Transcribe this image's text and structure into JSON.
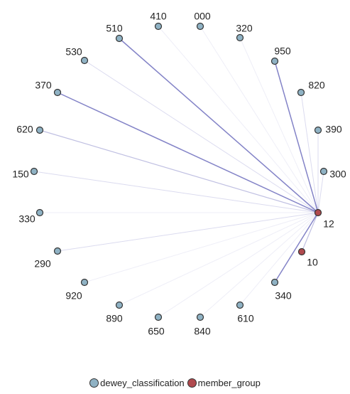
{
  "diagram": {
    "nodes": [
      {
        "id": "410",
        "label": "410",
        "group": "dewey_classification"
      },
      {
        "id": "000",
        "label": "000",
        "group": "dewey_classification"
      },
      {
        "id": "510",
        "label": "510",
        "group": "dewey_classification"
      },
      {
        "id": "320",
        "label": "320",
        "group": "dewey_classification"
      },
      {
        "id": "530",
        "label": "530",
        "group": "dewey_classification"
      },
      {
        "id": "950",
        "label": "950",
        "group": "dewey_classification"
      },
      {
        "id": "370",
        "label": "370",
        "group": "dewey_classification"
      },
      {
        "id": "820",
        "label": "820",
        "group": "dewey_classification"
      },
      {
        "id": "620",
        "label": "620",
        "group": "dewey_classification"
      },
      {
        "id": "390",
        "label": "390",
        "group": "dewey_classification"
      },
      {
        "id": "150",
        "label": "150",
        "group": "dewey_classification"
      },
      {
        "id": "300",
        "label": "300",
        "group": "dewey_classification"
      },
      {
        "id": "12",
        "label": "12",
        "group": "member_group"
      },
      {
        "id": "330",
        "label": "330",
        "group": "dewey_classification"
      },
      {
        "id": "10",
        "label": "10",
        "group": "member_group"
      },
      {
        "id": "290",
        "label": "290",
        "group": "dewey_classification"
      },
      {
        "id": "340",
        "label": "340",
        "group": "dewey_classification"
      },
      {
        "id": "920",
        "label": "920",
        "group": "dewey_classification"
      },
      {
        "id": "890",
        "label": "890",
        "group": "dewey_classification"
      },
      {
        "id": "610",
        "label": "610",
        "group": "dewey_classification"
      },
      {
        "id": "650",
        "label": "650",
        "group": "dewey_classification"
      },
      {
        "id": "840",
        "label": "840",
        "group": "dewey_classification"
      }
    ],
    "edges": [
      {
        "from": "12",
        "to": "410",
        "strength": "faint"
      },
      {
        "from": "12",
        "to": "000",
        "strength": "faint"
      },
      {
        "from": "12",
        "to": "510",
        "strength": "strong"
      },
      {
        "from": "12",
        "to": "320",
        "strength": "faint"
      },
      {
        "from": "12",
        "to": "530",
        "strength": "light"
      },
      {
        "from": "12",
        "to": "950",
        "strength": "strong"
      },
      {
        "from": "12",
        "to": "370",
        "strength": "strong"
      },
      {
        "from": "12",
        "to": "820",
        "strength": "light"
      },
      {
        "from": "12",
        "to": "620",
        "strength": "medium"
      },
      {
        "from": "12",
        "to": "390",
        "strength": "light"
      },
      {
        "from": "12",
        "to": "150",
        "strength": "light"
      },
      {
        "from": "12",
        "to": "300",
        "strength": "light"
      },
      {
        "from": "12",
        "to": "330",
        "strength": "faint"
      },
      {
        "from": "12",
        "to": "290",
        "strength": "light"
      },
      {
        "from": "12",
        "to": "920",
        "strength": "faint"
      },
      {
        "from": "12",
        "to": "890",
        "strength": "faint"
      },
      {
        "from": "12",
        "to": "650",
        "strength": "faint"
      },
      {
        "from": "12",
        "to": "840",
        "strength": "faint"
      },
      {
        "from": "12",
        "to": "610",
        "strength": "faint"
      },
      {
        "from": "12",
        "to": "340",
        "strength": "strong"
      },
      {
        "from": "12",
        "to": "10",
        "strength": "medium"
      }
    ]
  },
  "legend": {
    "items": [
      {
        "label": "dewey_classification",
        "color": "#8fb2c4"
      },
      {
        "label": "member_group",
        "color": "#b04a4e"
      }
    ]
  },
  "colors": {
    "dewey_classification": "#8fb2c4",
    "member_group": "#b04a4e",
    "node_stroke": "#333333",
    "edge": "#5a5ab4"
  }
}
